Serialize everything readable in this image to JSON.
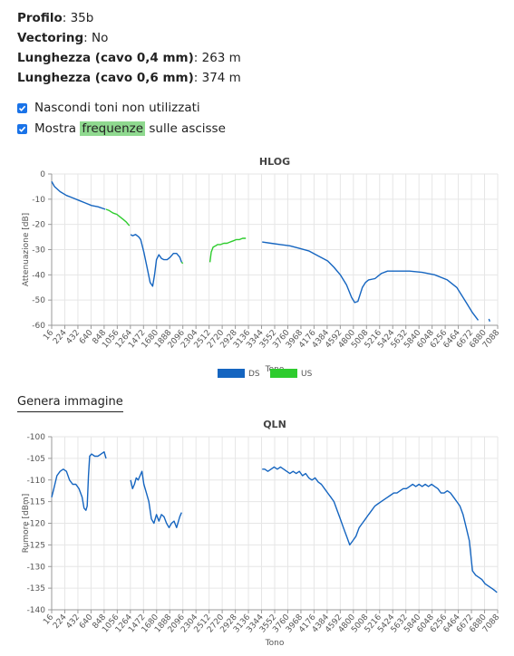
{
  "info": {
    "profile_label": "Profilo",
    "profile_value": "35b",
    "vectoring_label": "Vectoring",
    "vectoring_value": "No",
    "len04_label": "Lunghezza (cavo 0,4 mm)",
    "len04_value": "263 m",
    "len06_label": "Lunghezza (cavo 0,6 mm)",
    "len06_value": "374 m"
  },
  "options": {
    "hide_tones_label": "Nascondi toni non utilizzati",
    "show_freq_pre": "Mostra ",
    "show_freq_highlight": "frequenze",
    "show_freq_post": " sulle ascisse"
  },
  "generate_image_label": "Genera immagine",
  "colors": {
    "ds": "#1565c0",
    "us": "#2ecc2e",
    "grid": "#e6e6e6",
    "axis": "#999999"
  },
  "chart_data": [
    {
      "type": "line",
      "title": "HLOG",
      "xlabel": "Tono",
      "ylabel": "Attenuazione [dB]",
      "xlim": [
        16,
        7100
      ],
      "ylim": [
        -60,
        0
      ],
      "y_ticks": [
        0,
        -10,
        -20,
        -30,
        -40,
        -50,
        -60
      ],
      "x_ticks": [
        "16",
        "224",
        "432",
        "640",
        "848",
        "1056",
        "1264",
        "1472",
        "1680",
        "1888",
        "2096",
        "2304",
        "2512",
        "2720",
        "2928",
        "3136",
        "3344",
        "3552",
        "3760",
        "3968",
        "4176",
        "4384",
        "4592",
        "4800",
        "5008",
        "5216",
        "5424",
        "5632",
        "5840",
        "6048",
        "6256",
        "6464",
        "6672",
        "6880",
        "7088"
      ],
      "legend": [
        "DS",
        "US"
      ],
      "legend_position": "bottom",
      "grid": true,
      "series": [
        {
          "name": "DS",
          "color": "#1565c0",
          "x": [
            16,
            60,
            150,
            250,
            350,
            450,
            550,
            650,
            750,
            870
          ],
          "y": [
            -3,
            -5,
            -7,
            -8.5,
            -9.5,
            -10.5,
            -11.5,
            -12.5,
            -13,
            -14
          ]
        },
        {
          "name": "US",
          "color": "#2ecc2e",
          "x": [
            880,
            930,
            990,
            1050,
            1100,
            1150,
            1200,
            1250
          ],
          "y": [
            -14,
            -14.5,
            -15.5,
            -16,
            -17,
            -18,
            -19,
            -20.5
          ]
        },
        {
          "name": "DS",
          "color": "#1565c0",
          "x": [
            1270,
            1300,
            1350,
            1400,
            1430,
            1480,
            1530,
            1580,
            1620,
            1650,
            1680,
            1720,
            1760,
            1800,
            1850,
            1900,
            1950,
            2000,
            2050,
            2080
          ],
          "y": [
            -24,
            -24.5,
            -24,
            -25,
            -26,
            -31,
            -37,
            -43,
            -44.5,
            -40,
            -34,
            -32,
            -33.5,
            -34,
            -34,
            -33,
            -31.5,
            -31.5,
            -33,
            -35
          ]
        },
        {
          "name": "US",
          "color": "#2ecc2e",
          "x": [
            2080,
            2100
          ],
          "y": [
            -35,
            -35.5
          ]
        },
        {
          "name": "US",
          "color": "#2ecc2e",
          "x": [
            2530,
            2550,
            2580,
            2620,
            2650,
            2700,
            2750,
            2800,
            2850,
            2900,
            2950,
            3000,
            3050,
            3100
          ],
          "y": [
            -35,
            -31,
            -29,
            -28.5,
            -28,
            -28,
            -27.5,
            -27.5,
            -27,
            -26.5,
            -26,
            -26,
            -25.5,
            -25.5
          ]
        },
        {
          "name": "DS",
          "color": "#1565c0",
          "x": [
            3360,
            3500,
            3650,
            3800,
            3950,
            4100,
            4250,
            4400,
            4500,
            4600,
            4700,
            4780,
            4830,
            4880,
            4950,
            5000,
            5050,
            5150,
            5250,
            5350,
            5500,
            5700,
            5900,
            6100,
            6300,
            6450,
            6600,
            6700,
            6790
          ],
          "y": [
            -27,
            -27.5,
            -28,
            -28.5,
            -29.5,
            -30.5,
            -32.5,
            -34.5,
            -37,
            -40,
            -44,
            -49,
            -51,
            -50.5,
            -45,
            -43,
            -42,
            -41.5,
            -39.5,
            -38.5,
            -38.5,
            -38.5,
            -39,
            -40,
            -42,
            -45,
            -51,
            -55,
            -58
          ]
        },
        {
          "name": "DS",
          "color": "#1565c0",
          "x": [
            6960,
            6975
          ],
          "y": [
            -57.5,
            -58.5
          ]
        }
      ]
    },
    {
      "type": "line",
      "title": "QLN",
      "xlabel": "Tono",
      "ylabel": "Rumore [dBm]",
      "xlim": [
        16,
        7100
      ],
      "ylim": [
        -140,
        -100
      ],
      "y_ticks": [
        -100,
        -105,
        -110,
        -115,
        -120,
        -125,
        -130,
        -135,
        -140
      ],
      "x_ticks": [
        "16",
        "224",
        "432",
        "640",
        "848",
        "1056",
        "1264",
        "1472",
        "1680",
        "1888",
        "2096",
        "2304",
        "2512",
        "2720",
        "2928",
        "3136",
        "3344",
        "3552",
        "3760",
        "3968",
        "4176",
        "4384",
        "4592",
        "4800",
        "5008",
        "5216",
        "5424",
        "5632",
        "5840",
        "6048",
        "6256",
        "6464",
        "6672",
        "6880",
        "7088"
      ],
      "grid": true,
      "series": [
        {
          "name": "DS",
          "color": "#1565c0",
          "x": [
            16,
            50,
            100,
            150,
            200,
            250,
            300,
            350,
            400,
            450,
            500,
            530,
            560,
            580,
            600,
            620,
            650,
            700,
            750,
            800,
            850,
            880
          ],
          "y": [
            -114,
            -112,
            -109,
            -108,
            -107.5,
            -108,
            -110,
            -111,
            -111,
            -112,
            -114,
            -116.5,
            -117,
            -116,
            -109,
            -104.5,
            -104,
            -104.5,
            -104.5,
            -104,
            -103.5,
            -105
          ]
        },
        {
          "name": "DS",
          "color": "#1565c0",
          "x": [
            1270,
            1300,
            1330,
            1360,
            1390,
            1420,
            1450,
            1480,
            1520,
            1560,
            1600,
            1640,
            1680,
            1720,
            1760,
            1800,
            1840,
            1880,
            1920,
            1960,
            2000,
            2050,
            2080
          ],
          "y": [
            -110,
            -112,
            -111,
            -109.5,
            -110,
            -109,
            -108,
            -111,
            -113,
            -115,
            -119,
            -120,
            -118,
            -119.5,
            -118,
            -118.5,
            -120,
            -121,
            -120,
            -119.5,
            -121,
            -118.5,
            -117.5
          ]
        },
        {
          "name": "DS",
          "color": "#1565c0",
          "x": [
            3360,
            3400,
            3450,
            3500,
            3550,
            3600,
            3650,
            3700,
            3750,
            3800,
            3850,
            3900,
            3950,
            4000,
            4050,
            4100,
            4150,
            4200,
            4250,
            4300,
            4350,
            4400,
            4450,
            4500,
            4550,
            4600,
            4650,
            4700,
            4750,
            4800,
            4850,
            4900,
            4950,
            5000,
            5050,
            5100,
            5150,
            5200,
            5250,
            5300,
            5350,
            5400,
            5450,
            5500,
            5550,
            5600,
            5650,
            5700,
            5750,
            5800,
            5850,
            5900,
            5950,
            6000,
            6050,
            6100,
            6150,
            6200,
            6250,
            6300,
            6350,
            6400,
            6450,
            6500,
            6550,
            6600,
            6650,
            6700,
            6750,
            6800,
            6850,
            6900,
            6950,
            7000,
            7050,
            7088
          ],
          "y": [
            -107.5,
            -107.5,
            -108,
            -107.5,
            -107,
            -107.5,
            -107,
            -107.5,
            -108,
            -108.5,
            -108,
            -108.5,
            -108,
            -109,
            -108.5,
            -109.5,
            -110,
            -109.5,
            -110.5,
            -111,
            -112,
            -113,
            -114,
            -115,
            -117,
            -119,
            -121,
            -123,
            -125,
            -124,
            -123,
            -121,
            -120,
            -119,
            -118,
            -117,
            -116,
            -115.5,
            -115,
            -114.5,
            -114,
            -113.5,
            -113,
            -113,
            -112.5,
            -112,
            -112,
            -111.5,
            -111,
            -111.5,
            -111,
            -111.5,
            -111,
            -111.5,
            -111,
            -111.5,
            -112,
            -113,
            -113,
            -112.5,
            -113,
            -114,
            -115,
            -116,
            -118,
            -121,
            -124,
            -131,
            -132,
            -132.5,
            -133,
            -134,
            -134.5,
            -135,
            -135.5,
            -136
          ]
        }
      ]
    }
  ]
}
